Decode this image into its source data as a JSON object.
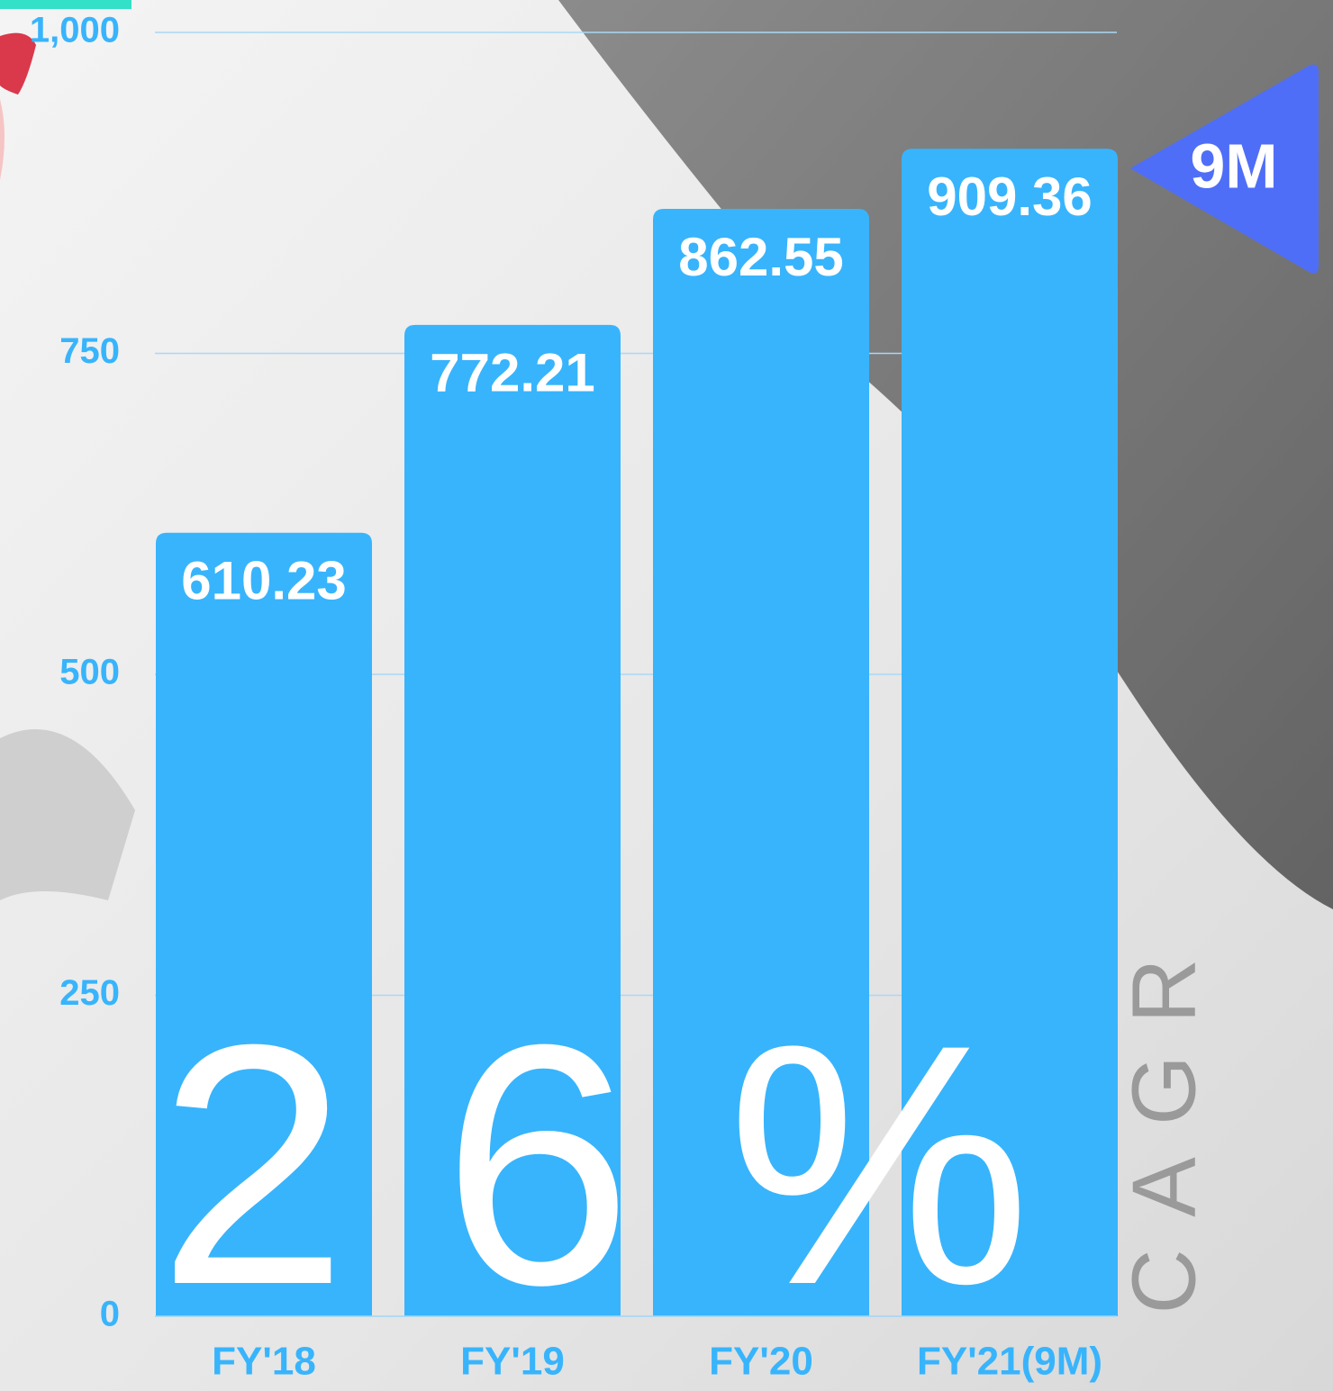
{
  "chart_data": {
    "type": "bar",
    "categories": [
      "FY'18",
      "FY'19",
      "FY'20",
      "FY'21(9M)"
    ],
    "values": [
      610.23,
      772.21,
      862.55,
      909.36
    ],
    "color": "#38b4fc",
    "ylim": [
      0,
      1000
    ],
    "yticks": [
      0,
      250,
      500,
      750,
      {
        "value": 1000,
        "label": "1,000"
      }
    ],
    "grid": true,
    "annotations": {
      "cagr_value": "26%",
      "cagr_label": "CAGR",
      "badge": "9M"
    }
  }
}
